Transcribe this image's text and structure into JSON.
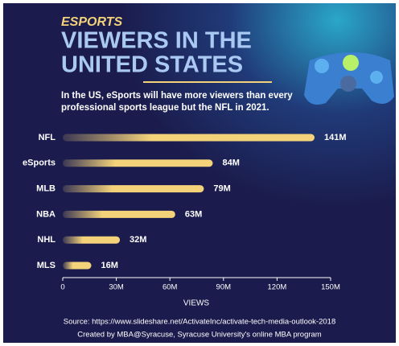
{
  "chart_data": {
    "type": "bar",
    "orientation": "horizontal",
    "kicker": "ESPORTS",
    "title": [
      "VIEWERS IN THE",
      "UNITED STATES"
    ],
    "subtitle": [
      "In the US, eSports will have more viewers than every",
      "professional sports league but the NFL in 2021."
    ],
    "categories": [
      "NFL",
      "eSports",
      "MLB",
      "NBA",
      "NHL",
      "MLS"
    ],
    "values": [
      141,
      84,
      79,
      63,
      32,
      16
    ],
    "value_labels": [
      "141M",
      "84M",
      "79M",
      "63M",
      "32M",
      "16M"
    ],
    "color": "#f3d27a",
    "xlim": [
      0,
      150
    ],
    "xticks": [
      0,
      {
        "value": 30,
        "label": "30M"
      },
      {
        "value": 60,
        "label": "60M"
      },
      {
        "value": 90,
        "label": "90M"
      },
      {
        "value": 120,
        "label": "120M"
      },
      {
        "value": 150,
        "label": "150M"
      }
    ],
    "xlabel": "VIEWS",
    "source": "Source: https://www.slideshare.net/ActivateInc/activate-tech-media-outlook-2018",
    "credit": "Created by MBA@Syracuse, Syracuse University's online MBA program"
  }
}
